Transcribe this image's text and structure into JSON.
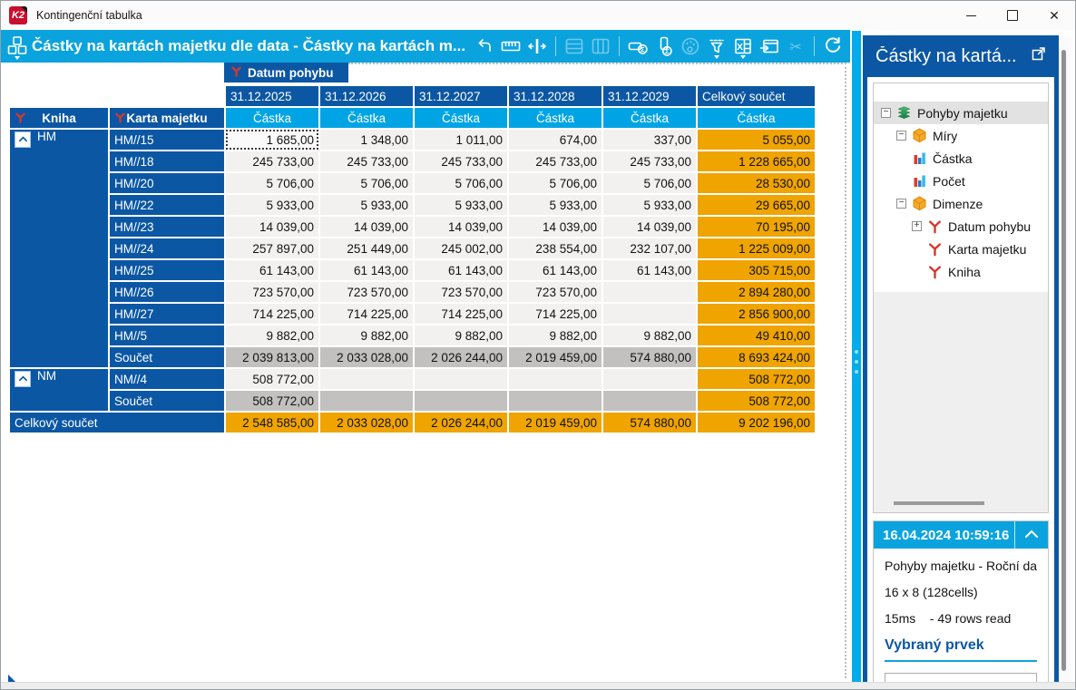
{
  "window": {
    "title": "Kontingenční tabulka",
    "logo": "K2"
  },
  "toolbar": {
    "title": "Částky na kartách majetku dle data - Částky na kartách m...",
    "main_icon": "pivot-cube-icon",
    "items": [
      {
        "name": "undo-icon"
      },
      {
        "name": "ruler-icon"
      },
      {
        "name": "column-width-icon"
      },
      {
        "sep": true
      },
      {
        "name": "rows-layout-icon",
        "disabled": true
      },
      {
        "name": "columns-layout-icon",
        "disabled": true
      },
      {
        "sep": true
      },
      {
        "name": "row-sum-icon"
      },
      {
        "name": "column-sum-icon"
      },
      {
        "name": "palette-icon",
        "disabled": true
      },
      {
        "name": "filter-icon",
        "caret": true
      },
      {
        "name": "excel-export-icon",
        "caret": true
      },
      {
        "name": "export-window-icon"
      },
      {
        "name": "cut-icon",
        "disabled": true
      },
      {
        "sep": true
      },
      {
        "name": "refresh-icon"
      },
      {
        "name": "pause-icon"
      },
      {
        "name": "connection-status-icon"
      }
    ]
  },
  "pivot": {
    "col_dimension": "Datum pohybu",
    "row_dimensions": [
      "Kniha",
      "Karta majetku"
    ],
    "measure_label": "Částka",
    "columns": [
      "31.12.2025",
      "31.12.2026",
      "31.12.2027",
      "31.12.2028",
      "31.12.2029"
    ],
    "total_column": "Celkový součet",
    "groups": [
      {
        "name": "HM",
        "rows": [
          {
            "label": "HM//15",
            "values": [
              "1 685,00",
              "1 348,00",
              "1 011,00",
              "674,00",
              "337,00"
            ],
            "total": "5 055,00"
          },
          {
            "label": "HM//18",
            "values": [
              "245 733,00",
              "245 733,00",
              "245 733,00",
              "245 733,00",
              "245 733,00"
            ],
            "total": "1 228 665,00"
          },
          {
            "label": "HM//20",
            "values": [
              "5 706,00",
              "5 706,00",
              "5 706,00",
              "5 706,00",
              "5 706,00"
            ],
            "total": "28 530,00"
          },
          {
            "label": "HM//22",
            "values": [
              "5 933,00",
              "5 933,00",
              "5 933,00",
              "5 933,00",
              "5 933,00"
            ],
            "total": "29 665,00"
          },
          {
            "label": "HM//23",
            "values": [
              "14 039,00",
              "14 039,00",
              "14 039,00",
              "14 039,00",
              "14 039,00"
            ],
            "total": "70 195,00"
          },
          {
            "label": "HM//24",
            "values": [
              "257 897,00",
              "251 449,00",
              "245 002,00",
              "238 554,00",
              "232 107,00"
            ],
            "total": "1 225 009,00"
          },
          {
            "label": "HM//25",
            "values": [
              "61 143,00",
              "61 143,00",
              "61 143,00",
              "61 143,00",
              "61 143,00"
            ],
            "total": "305 715,00"
          },
          {
            "label": "HM//26",
            "values": [
              "723 570,00",
              "723 570,00",
              "723 570,00",
              "723 570,00",
              ""
            ],
            "total": "2 894 280,00"
          },
          {
            "label": "HM//27",
            "values": [
              "714 225,00",
              "714 225,00",
              "714 225,00",
              "714 225,00",
              ""
            ],
            "total": "2 856 900,00"
          },
          {
            "label": "HM//5",
            "values": [
              "9 882,00",
              "9 882,00",
              "9 882,00",
              "9 882,00",
              "9 882,00"
            ],
            "total": "49 410,00"
          }
        ],
        "subtotal": {
          "label": "Součet",
          "values": [
            "2 039 813,00",
            "2 033 028,00",
            "2 026 244,00",
            "2 019 459,00",
            "574 880,00"
          ],
          "total": "8 693 424,00"
        }
      },
      {
        "name": "NM",
        "rows": [
          {
            "label": "NM//4",
            "values": [
              "508 772,00",
              "",
              "",
              "",
              ""
            ],
            "total": "508 772,00"
          }
        ],
        "subtotal": {
          "label": "Součet",
          "values": [
            "508 772,00",
            "",
            "",
            "",
            ""
          ],
          "total": "508 772,00"
        }
      }
    ],
    "grand_total": {
      "label": "Celkový součet",
      "values": [
        "2 548 585,00",
        "2 033 028,00",
        "2 026 244,00",
        "2 019 459,00",
        "574 880,00"
      ],
      "total": "9 202 196,00"
    },
    "selected_cell": {
      "group": 0,
      "row": 0,
      "col": 0
    }
  },
  "sidebar": {
    "title": "Částky na kartá...",
    "tree": {
      "items": [
        {
          "label": "Pohyby majetku",
          "icon": "layers-icon",
          "level": 0,
          "expander": "minus",
          "selected": true
        },
        {
          "label": "Míry",
          "icon": "cube-icon",
          "level": 1,
          "expander": "minus"
        },
        {
          "label": "Částka",
          "icon": "measure-icon",
          "level": 2
        },
        {
          "label": "Počet",
          "icon": "measure-icon",
          "level": 2
        },
        {
          "label": "Dimenze",
          "icon": "cube-icon",
          "level": 1,
          "expander": "minus"
        },
        {
          "label": "Datum pohybu",
          "icon": "dimension-icon",
          "level": 2,
          "expander": "plus"
        },
        {
          "label": "Karta majetku",
          "icon": "dimension-icon",
          "level": 2,
          "spacer": true
        },
        {
          "label": "Kniha",
          "icon": "dimension-icon",
          "level": 2,
          "spacer": true
        }
      ]
    }
  },
  "status": {
    "timestamp": "16.04.2024 10:59:16",
    "source": "Pohyby majetku - Roční da...",
    "size": "16 x 8 (128cells)",
    "duration": "15ms",
    "rows_read": "- 49 rows read",
    "selected_heading": "Vybraný prvek"
  },
  "colors": {
    "accent_cyan": "#0BA3DE",
    "header_blue": "#0B57A4",
    "subheader_cyan": "#00A4E4",
    "total_orange": "#EFA400",
    "subtotal_gray": "#C2C1C0",
    "cell_bg": "#F2F1F0"
  }
}
